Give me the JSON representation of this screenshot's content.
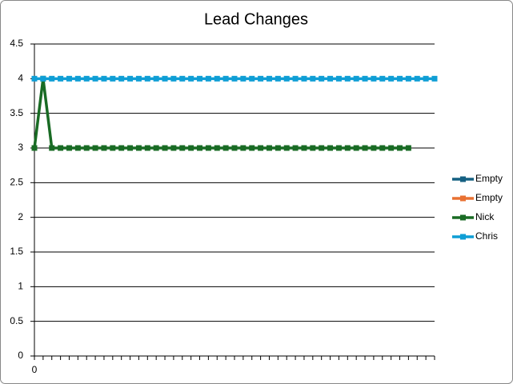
{
  "chart_data": {
    "type": "line",
    "title": "Lead Changes",
    "categories": [
      "0",
      null,
      null,
      null,
      null,
      null,
      null,
      null,
      null,
      null,
      null,
      null,
      null,
      null,
      null,
      null,
      null,
      null,
      null,
      null,
      null,
      null,
      null,
      null,
      null,
      null,
      null,
      null,
      null,
      null,
      null,
      null,
      null,
      null,
      null,
      null,
      null,
      null,
      null,
      null,
      null,
      null,
      null,
      null,
      null,
      null,
      null
    ],
    "series": [
      {
        "name": "Empty",
        "color": "#156082",
        "values": [
          null,
          null,
          null,
          null,
          null,
          null,
          null,
          null,
          null,
          null,
          null,
          null,
          null,
          null,
          null,
          null,
          null,
          null,
          null,
          null,
          null,
          null,
          null,
          null,
          null,
          null,
          null,
          null,
          null,
          null,
          null,
          null,
          null,
          null,
          null,
          null,
          null,
          null,
          null,
          null,
          null,
          null,
          null,
          null,
          null,
          null,
          null
        ]
      },
      {
        "name": "Empty",
        "color": "#e97132",
        "values": [
          null,
          null,
          null,
          null,
          null,
          null,
          null,
          null,
          null,
          null,
          null,
          null,
          null,
          null,
          null,
          null,
          null,
          null,
          null,
          null,
          null,
          null,
          null,
          null,
          null,
          null,
          null,
          null,
          null,
          null,
          null,
          null,
          null,
          null,
          null,
          null,
          null,
          null,
          null,
          null,
          null,
          null,
          null,
          null,
          null,
          null,
          null
        ]
      },
      {
        "name": "Nick",
        "color": "#196b24",
        "values": [
          3,
          4,
          3,
          3,
          3,
          3,
          3,
          3,
          3,
          3,
          3,
          3,
          3,
          3,
          3,
          3,
          3,
          3,
          3,
          3,
          3,
          3,
          3,
          3,
          3,
          3,
          3,
          3,
          3,
          3,
          3,
          3,
          3,
          3,
          3,
          3,
          3,
          3,
          3,
          3,
          3,
          3,
          3,
          3,
          null,
          null,
          null
        ]
      },
      {
        "name": "Chris",
        "color": "#0f9ed5",
        "values": [
          4,
          4,
          4,
          4,
          4,
          4,
          4,
          4,
          4,
          4,
          4,
          4,
          4,
          4,
          4,
          4,
          4,
          4,
          4,
          4,
          4,
          4,
          4,
          4,
          4,
          4,
          4,
          4,
          4,
          4,
          4,
          4,
          4,
          4,
          4,
          4,
          4,
          4,
          4,
          4,
          4,
          4,
          4,
          4,
          4,
          4,
          4
        ]
      }
    ],
    "ylim": [
      0,
      4.5
    ],
    "yticks": [
      0,
      0.5,
      1,
      1.5,
      2,
      2.5,
      3,
      3.5,
      4,
      4.5
    ],
    "grid": true,
    "legend": "right"
  }
}
